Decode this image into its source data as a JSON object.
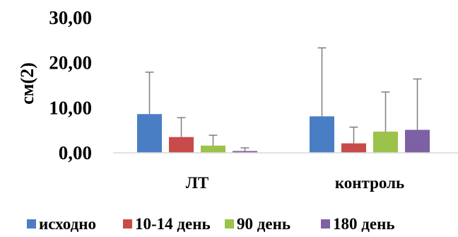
{
  "chart_data": {
    "type": "bar",
    "ylabel": "см(2)",
    "xlabel": "",
    "title": "",
    "ylim": [
      0,
      30
    ],
    "yticks": [
      0,
      10,
      20,
      30
    ],
    "ytick_labels": [
      "0,00",
      "10,00",
      "20,00",
      "30,00"
    ],
    "categories": [
      "ЛТ",
      "контроль"
    ],
    "series": [
      {
        "name": "исходно",
        "color": "#4a7ec4",
        "values": [
          8.6,
          8.1
        ],
        "error": [
          9.3,
          15.2
        ]
      },
      {
        "name": "10-14 день",
        "color": "#c84b4b",
        "values": [
          3.5,
          2.1
        ],
        "error": [
          4.3,
          3.6
        ]
      },
      {
        "name": "90 день",
        "color": "#9bc24a",
        "values": [
          1.6,
          4.7
        ],
        "error": [
          2.3,
          8.8
        ]
      },
      {
        "name": "180 день",
        "color": "#7e60a5",
        "values": [
          0.4,
          5.1
        ],
        "error": [
          0.7,
          11.3
        ]
      }
    ],
    "grid": false,
    "legend_position": "bottom"
  }
}
